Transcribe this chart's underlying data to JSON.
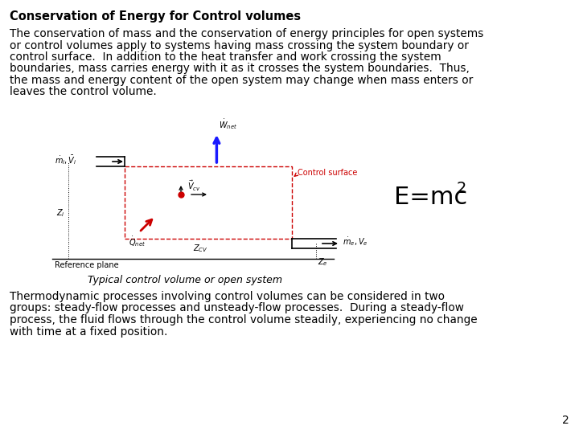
{
  "title": "Conservation of Energy for Control volumes",
  "paragraph1_lines": [
    "The conservation of mass and the conservation of energy principles for open systems",
    "or control volumes apply to systems having mass crossing the system boundary or",
    "control surface.  In addition to the heat transfer and work crossing the system",
    "boundaries, mass carries energy with it as it crosses the system boundaries.  Thus,",
    "the mass and energy content of the open system may change when mass enters or",
    "leaves the control volume."
  ],
  "paragraph2_lines": [
    "Thermodynamic processes involving control volumes can be considered in two",
    "groups: steady-flow processes and unsteady-flow processes.  During a steady-flow",
    "process, the fluid flows through the control volume steadily, experiencing no change",
    "with time at a fixed position."
  ],
  "fig_caption": "Typical control volume or open system",
  "ref_plane": "Reference plane",
  "control_surface_label": "Control surface",
  "page_number": "2",
  "bg_color": "#ffffff",
  "text_color": "#000000",
  "diagram_color": "#000000",
  "red_color": "#cc0000",
  "blue_color": "#1a1aff",
  "title_fontsize": 10.5,
  "body_fontsize": 9.8,
  "eq_fontsize": 22,
  "eq_sup_fontsize": 14,
  "caption_fontsize": 9,
  "ref_fontsize": 7,
  "diag_label_fontsize": 7
}
